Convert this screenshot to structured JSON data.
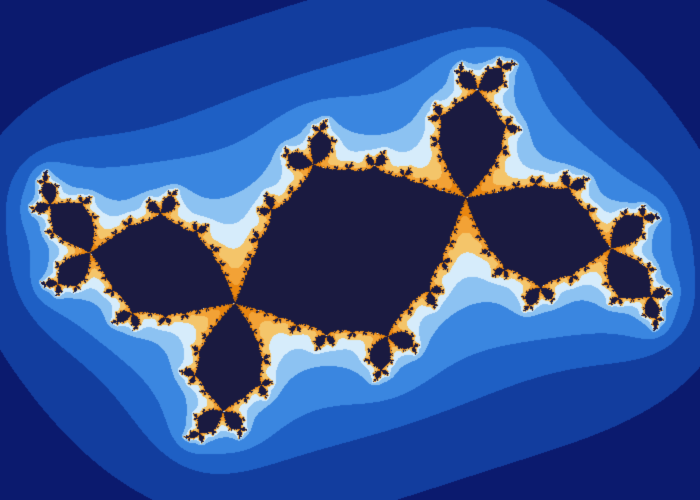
{
  "image": {
    "subject": "julia-set-fractal",
    "background_color": "#07063a",
    "palette": [
      "#07063a",
      "#0b1a6e",
      "#123d9e",
      "#1e5fc4",
      "#3a86e0",
      "#8cc2f2",
      "#d6ecfb",
      "#f4c56a",
      "#f2a236",
      "#e9860f",
      "#b8650a",
      "#1a1a40"
    ]
  }
}
